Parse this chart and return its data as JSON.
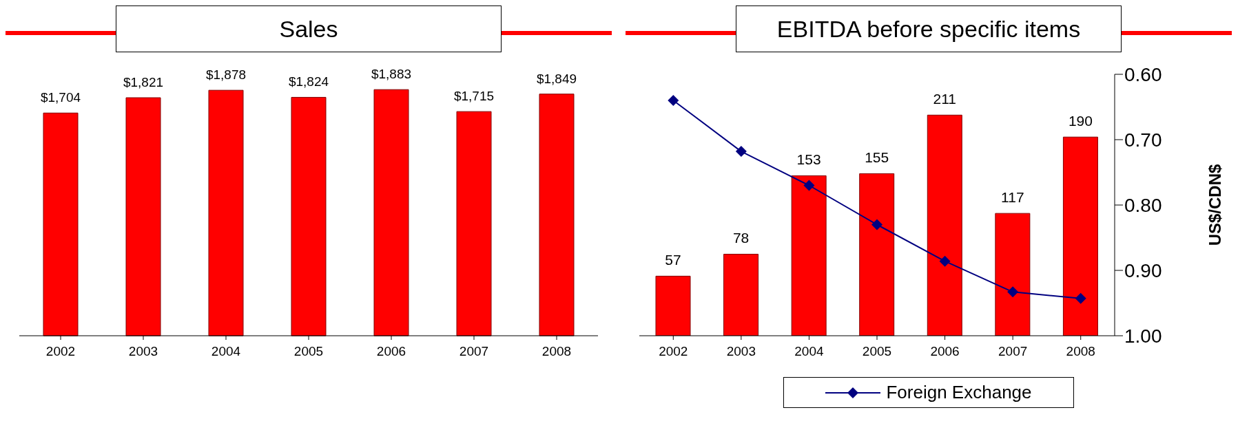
{
  "chart_data": [
    {
      "type": "bar",
      "title": "Sales",
      "categories": [
        "2002",
        "2003",
        "2004",
        "2005",
        "2006",
        "2007",
        "2008"
      ],
      "values": [
        1704,
        1821,
        1878,
        1824,
        1883,
        1715,
        1849
      ],
      "color": "#ff0000",
      "value_labels": [
        "$1,704",
        "$1,821",
        "$1,878",
        "$1,824",
        "$1,883",
        "$1,715",
        "$1,849"
      ]
    },
    {
      "type": "bar",
      "title": "EBITDA before specific items",
      "categories": [
        "2002",
        "2003",
        "2004",
        "2005",
        "2006",
        "2007",
        "2008"
      ],
      "series": [
        {
          "color": "#ff0000",
          "values": [
            57,
            78,
            153,
            155,
            211,
            117,
            190
          ],
          "value_labels": [
            "57",
            "78",
            "153",
            "155",
            "211",
            "117",
            "190"
          ]
        },
        {
          "type": "line",
          "name": "Foreign Exchange",
          "axis": "y2",
          "color": "#000080",
          "values": [
            0.64,
            0.718,
            0.77,
            0.83,
            0.886,
            0.933,
            0.943
          ]
        }
      ],
      "ylim": [
        0,
        250
      ],
      "y2lim": [
        1.0,
        0.6
      ],
      "y2ticks": [
        {
          "value": 1.0,
          "label": "1.00"
        },
        {
          "value": 0.9,
          "label": "0.90"
        },
        {
          "value": 0.8,
          "label": "0.80"
        },
        {
          "value": 0.7,
          "label": "0.70"
        },
        {
          "value": 0.6,
          "label": "0.60"
        }
      ],
      "y2label": "US$/CDN$",
      "legend": "bottom",
      "marker": "diamond"
    }
  ]
}
